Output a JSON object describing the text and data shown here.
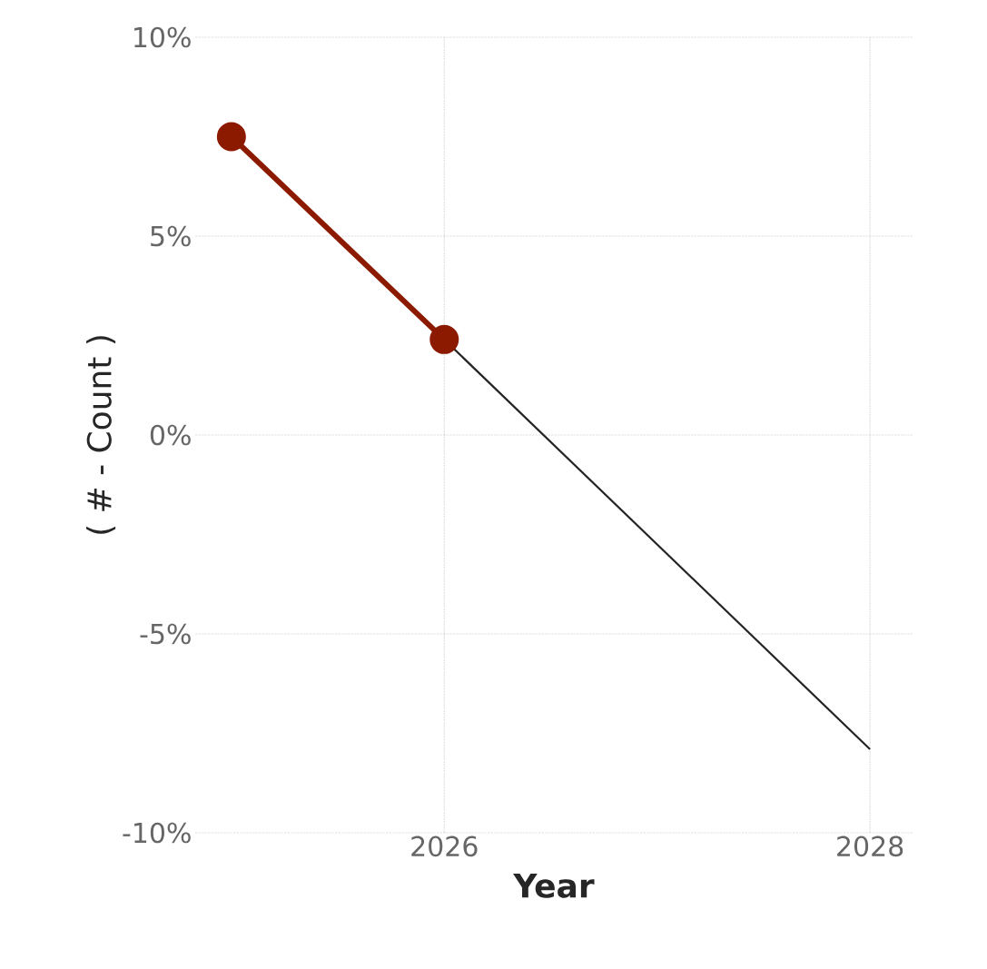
{
  "chart_data": {
    "type": "line",
    "xlabel": "Year",
    "ylabel": "( # - Count )",
    "xlim": [
      2024.83,
      2028.2
    ],
    "xticks": [
      2026,
      2028
    ],
    "ylim": [
      -10,
      10
    ],
    "yticks": [
      {
        "value": -10,
        "label": "-10%"
      },
      {
        "value": -5,
        "label": "-5%"
      },
      {
        "value": 0,
        "label": "0%"
      },
      {
        "value": 5,
        "label": "5%"
      },
      {
        "value": 10,
        "label": "10%"
      }
    ],
    "grid": true,
    "series": [
      {
        "color": "#8b1a00",
        "marker": "circle",
        "x": [
          2025,
          2026
        ],
        "values": [
          7.5,
          2.4
        ]
      },
      {
        "color": "#252423",
        "marker": "none",
        "x": [
          2026,
          2028
        ],
        "values": [
          2.4,
          -7.9
        ]
      }
    ]
  }
}
